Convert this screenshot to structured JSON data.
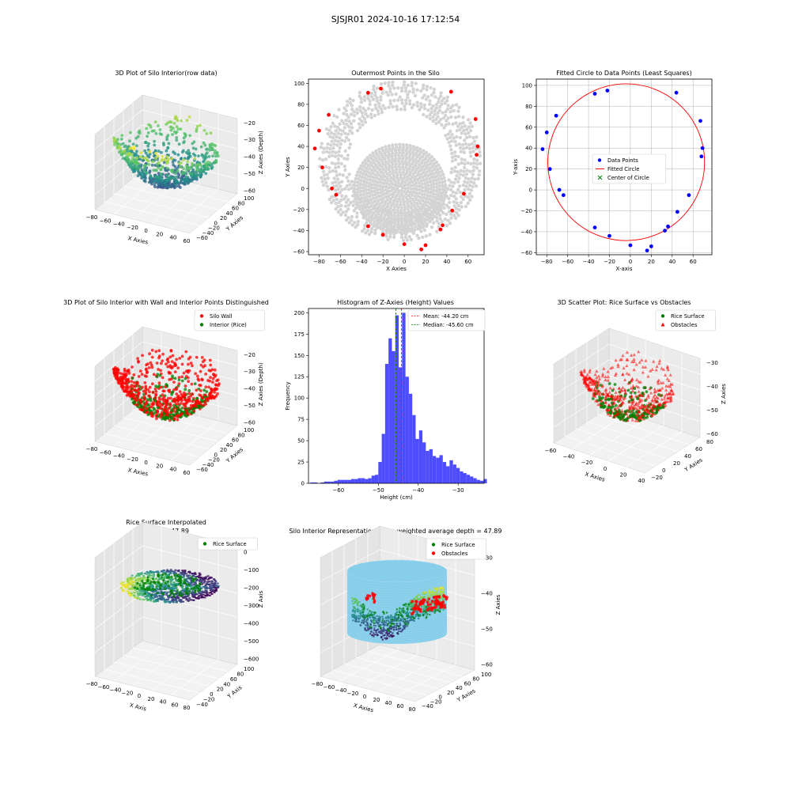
{
  "figure": {
    "suptitle": "SJSJR01 2024-10-16 17:12:54"
  },
  "colors": {
    "wall": "#ff0000",
    "interior": "#008000",
    "gray": "#d3d3d3",
    "blue": "#0000ff",
    "hist": "#4d4dff",
    "silo": "#87ceeb",
    "grid3d": "#e8e8e8",
    "pane": "#f2f2f2"
  },
  "chart_data": [
    {
      "id": "p1",
      "type": "scatter",
      "title": "3D Plot of Silo Interior(row data)",
      "xlabel": "X Axies",
      "ylabel": "Y Axies",
      "zlabel": "Z Axies (Depth)",
      "xticks": [
        "−80",
        "−60",
        "−40",
        "−20",
        "0",
        "20",
        "40",
        "60"
      ],
      "yticks": [
        "−60",
        "−40",
        "−20",
        "0",
        "20",
        "40",
        "60",
        "80",
        "100"
      ],
      "zticks": [
        "−20",
        "−30",
        "−40",
        "−50",
        "−60"
      ],
      "colormap": "viridis"
    },
    {
      "id": "p2",
      "type": "scatter",
      "title": "Outermost Points in the Silo",
      "xlabel": "X Axies",
      "ylabel": "Y Axies",
      "xlim": [
        -90,
        75
      ],
      "ylim": [
        -63,
        104
      ],
      "xticks": [
        -80,
        -60,
        -40,
        -20,
        0,
        20,
        40,
        60
      ],
      "yticks": [
        -60,
        -40,
        -20,
        0,
        20,
        40,
        60,
        80,
        100
      ],
      "highlight_points": [
        [
          -22,
          95
        ],
        [
          -34,
          91
        ],
        [
          44,
          92
        ],
        [
          -71,
          70
        ],
        [
          67,
          66
        ],
        [
          -80,
          55
        ],
        [
          69,
          40
        ],
        [
          -84,
          38
        ],
        [
          68,
          32
        ],
        [
          -77,
          20
        ],
        [
          -68,
          0
        ],
        [
          -64,
          -6
        ],
        [
          56,
          -5
        ],
        [
          45,
          -21
        ],
        [
          36,
          -35
        ],
        [
          34,
          -39
        ],
        [
          -34,
          -36
        ],
        [
          -20,
          -44
        ],
        [
          0,
          -53
        ],
        [
          20,
          -54
        ],
        [
          16,
          -58
        ]
      ]
    },
    {
      "id": "p3",
      "type": "scatter",
      "title": "Fitted Circle to Data Points (Least Squares)",
      "xlabel": "X-axis",
      "ylabel": "Y-axis",
      "xlim": [
        -90,
        78
      ],
      "ylim": [
        -62,
        106
      ],
      "xticks": [
        -80,
        -60,
        -40,
        -20,
        0,
        20,
        40,
        60
      ],
      "yticks": [
        -60,
        -40,
        -20,
        0,
        20,
        40,
        60,
        80,
        100
      ],
      "points": [
        [
          -22,
          95
        ],
        [
          -34,
          92
        ],
        [
          44,
          93
        ],
        [
          -71,
          71
        ],
        [
          67,
          66
        ],
        [
          -80,
          55
        ],
        [
          69,
          40
        ],
        [
          -84,
          39
        ],
        [
          68,
          32
        ],
        [
          -77,
          20
        ],
        [
          -68,
          0
        ],
        [
          -64,
          -5
        ],
        [
          56,
          -5
        ],
        [
          45,
          -21
        ],
        [
          36,
          -35
        ],
        [
          33,
          -39
        ],
        [
          -34,
          -36
        ],
        [
          -20,
          -44
        ],
        [
          0,
          -53
        ],
        [
          20,
          -54
        ],
        [
          16,
          -58
        ]
      ],
      "circle": {
        "cx": -4,
        "cy": 26.5,
        "r": 75
      },
      "legend": [
        "Data Points",
        "Fitted Circle",
        "Center of Circle"
      ],
      "grid": true
    },
    {
      "id": "p4",
      "type": "scatter",
      "title": "3D Plot of Silo Interior with Wall and Interior Points Distinguished",
      "xlabel": "X Axies",
      "ylabel": "Y Axies",
      "zlabel": "Z Axies (Depth)",
      "xticks": [
        "−80",
        "−60",
        "−40",
        "−20",
        "0",
        "20",
        "40",
        "60"
      ],
      "yticks": [
        "−60",
        "−40",
        "−20",
        "0",
        "20",
        "40",
        "60",
        "80",
        "100"
      ],
      "zticks": [
        "−20",
        "−30",
        "−40",
        "−50",
        "−60"
      ],
      "legend": [
        "Silo Wall",
        "Interior (Rice)"
      ]
    },
    {
      "id": "p5",
      "type": "bar",
      "title": "Histogram of Z-Axies (Height) Values",
      "xlabel": "Height (cm)",
      "ylabel": "Frequency",
      "xlim": [
        -67.5,
        -23.5
      ],
      "ylim": [
        0,
        205
      ],
      "xticks": [
        -60,
        -50,
        -40,
        -30
      ],
      "yticks": [
        0,
        25,
        50,
        75,
        100,
        125,
        150,
        175,
        200
      ],
      "bin_start": -67,
      "bin_width": 0.85,
      "values": [
        1,
        1,
        0,
        1,
        2,
        2,
        2,
        3,
        4,
        4,
        4,
        4,
        5,
        5,
        6,
        6,
        5,
        6,
        9,
        10,
        25,
        58,
        140,
        170,
        155,
        197,
        136,
        200,
        125,
        105,
        80,
        52,
        62,
        48,
        38,
        40,
        32,
        30,
        33,
        25,
        20,
        27,
        22,
        18,
        14,
        12,
        10,
        8,
        6,
        4,
        3,
        5
      ],
      "mean": -44.2,
      "median": -45.6,
      "legend": [
        "Mean: -44.20 cm",
        "Median: -45.60 cm"
      ]
    },
    {
      "id": "p6",
      "type": "scatter",
      "title": "3D Scatter Plot: Rice Surface vs Obstacles",
      "xlabel": "X Axies",
      "ylabel": "Y Axies",
      "zlabel": "Z Axies",
      "xticks": [
        "−60",
        "−40",
        "−20",
        "0",
        "20",
        "40"
      ],
      "yticks": [
        "−20",
        "0",
        "20",
        "40",
        "60",
        "80"
      ],
      "zticks": [
        "−30",
        "−40",
        "−50",
        "−60"
      ],
      "legend": [
        "Rice Surface",
        "Obstacles"
      ]
    },
    {
      "id": "p7",
      "type": "scatter",
      "title": "Rice Surface Interpolated",
      "subtitle": "depth = 47.89",
      "xlabel": "X Axis",
      "ylabel": "Y Axis",
      "zlabel": "Z Axis",
      "xticks": [
        "−80",
        "−60",
        "−40",
        "−20",
        "0",
        "20",
        "40",
        "60",
        "80"
      ],
      "yticks": [
        "−40",
        "−20",
        "0",
        "20",
        "40",
        "60",
        "80",
        "100"
      ],
      "zticks": [
        "0",
        "−100",
        "−200",
        "−300",
        "−400",
        "−500",
        "−600"
      ],
      "legend": [
        "Rice Surface"
      ]
    },
    {
      "id": "p8",
      "type": "scatter",
      "title": "Silo Interior Representation using weighted average depth = 47.89",
      "xlabel": "X Axies",
      "ylabel": "Y Axies",
      "zlabel": "Z Axies",
      "xticks": [
        "−80",
        "−60",
        "−40",
        "−20",
        "0",
        "20",
        "40",
        "60",
        "80"
      ],
      "yticks": [
        "−40",
        "−20",
        "0",
        "20",
        "40",
        "60",
        "80",
        "100"
      ],
      "zticks": [
        "−30",
        "−40",
        "−50",
        "−60"
      ],
      "legend": [
        "Rice Surface",
        "Obstacles"
      ]
    }
  ]
}
